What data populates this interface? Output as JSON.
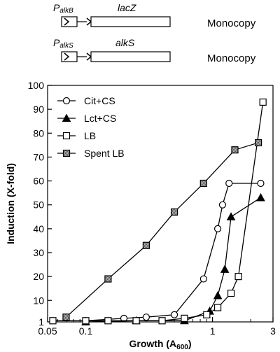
{
  "constructs": [
    {
      "promoter": "PalkB",
      "promoter_main": "P",
      "promoter_sub": "alkB",
      "gene": "lacZ",
      "copy": "Monocopy"
    },
    {
      "promoter": "PalkS",
      "promoter_main": "P",
      "promoter_sub": "alkS",
      "gene": "alkS",
      "copy": "Monocopy"
    }
  ],
  "chart_data": {
    "type": "line",
    "xlabel": "Growth (A600)",
    "xlabel_main": "Growth (A",
    "xlabel_sub": "600",
    "xlabel_end": ")",
    "ylabel": "Induction (X-fold)",
    "x_scale": "log",
    "xlim": [
      0.05,
      3
    ],
    "ylim": [
      1,
      100
    ],
    "x_ticks": [
      0.05,
      0.1,
      1,
      3
    ],
    "x_tick_labels": [
      "0.05",
      "0.1",
      "1",
      "3"
    ],
    "y_ticks": [
      1,
      10,
      20,
      30,
      40,
      50,
      60,
      70,
      80,
      90,
      100
    ],
    "y_tick_labels": [
      "1",
      "10",
      "20",
      "30",
      "40",
      "50",
      "60",
      "70",
      "80",
      "90",
      "100"
    ],
    "grid": false,
    "legend_position": "top-left",
    "series": [
      {
        "name": "Cit+CS",
        "marker": "open-circle",
        "x": [
          0.1,
          0.2,
          0.3,
          0.5,
          0.85,
          1.1,
          1.2,
          1.35,
          2.4
        ],
        "y": [
          1.5,
          2.5,
          3,
          4,
          19,
          40,
          50,
          59,
          59
        ]
      },
      {
        "name": "Lct+CS",
        "marker": "filled-triangle",
        "x": [
          0.1,
          0.25,
          0.6,
          0.95,
          1.1,
          1.25,
          1.4,
          2.4
        ],
        "y": [
          1,
          1.5,
          1.5,
          5.5,
          12,
          23,
          45,
          53
        ]
      },
      {
        "name": "LB",
        "marker": "open-square",
        "x": [
          0.055,
          0.1,
          0.15,
          0.25,
          0.4,
          0.6,
          0.9,
          1.1,
          1.4,
          1.6,
          2.5
        ],
        "y": [
          1.5,
          1.5,
          1.5,
          1.5,
          1.5,
          2.5,
          4,
          7,
          13,
          20,
          93
        ]
      },
      {
        "name": "Spent LB",
        "marker": "shaded-square",
        "x": [
          0.07,
          0.15,
          0.3,
          0.5,
          0.85,
          1.5,
          2.3
        ],
        "y": [
          3,
          19,
          33,
          47,
          59,
          73,
          76
        ]
      }
    ]
  }
}
